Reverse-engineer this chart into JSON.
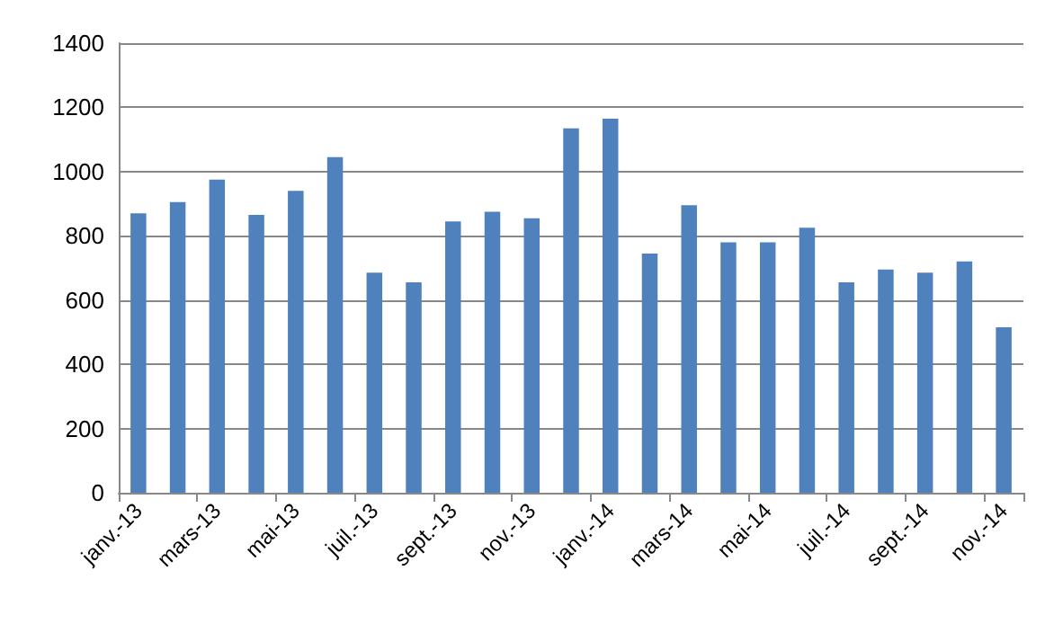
{
  "chart_data": {
    "type": "bar",
    "categories": [
      "janv.-13",
      null,
      "mars-13",
      null,
      "mai-13",
      null,
      "juil.-13",
      null,
      "sept.-13",
      null,
      "nov.-13",
      null,
      "janv.-14",
      null,
      "mars-14",
      null,
      "mai-14",
      null,
      "juil.-14",
      null,
      "sept.-14",
      null,
      "nov.-14"
    ],
    "values": [
      870,
      905,
      975,
      865,
      940,
      1045,
      685,
      655,
      845,
      875,
      855,
      1135,
      1165,
      745,
      895,
      780,
      780,
      825,
      655,
      695,
      685,
      720,
      515
    ],
    "color": "#4f81bd",
    "ylim": [
      0,
      1400
    ],
    "yticks": [
      0,
      200,
      400,
      600,
      800,
      1000,
      1200,
      1400
    ],
    "grid": "y"
  }
}
